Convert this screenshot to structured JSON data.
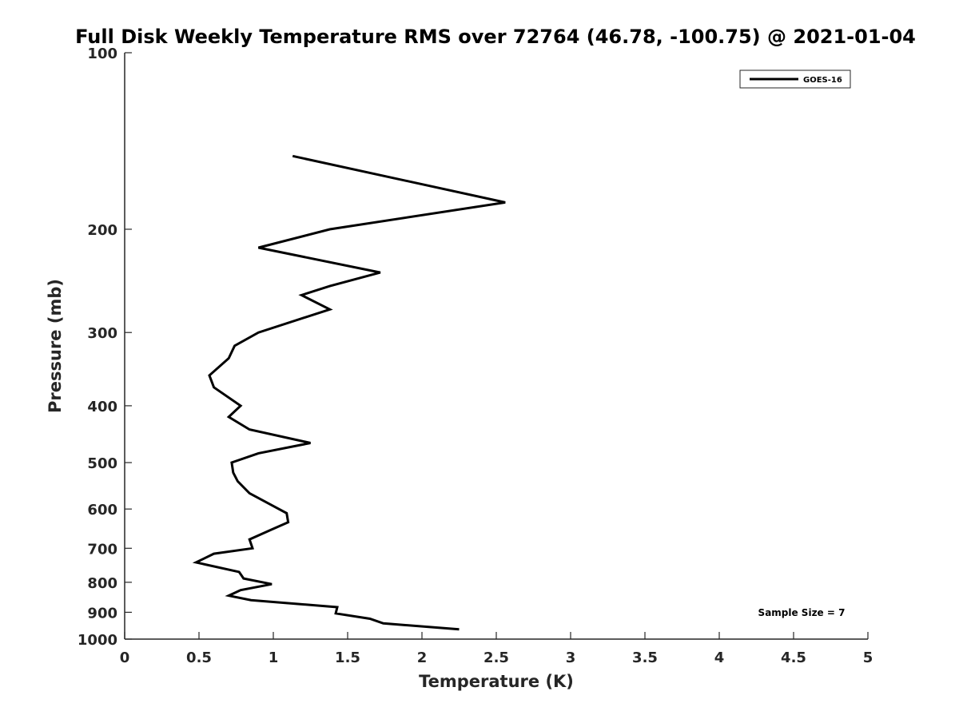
{
  "chart_data": {
    "type": "line",
    "title": "Full Disk Weekly Temperature RMS over 72764 (46.78, -100.75) @ 2021-01-04",
    "xlabel": "Temperature (K)",
    "ylabel": "Pressure (mb)",
    "xlim": [
      0,
      5
    ],
    "ylim": [
      100,
      1000
    ],
    "y_scale": "log",
    "y_reversed": true,
    "grid": false,
    "x_ticks": [
      0,
      0.5,
      1,
      1.5,
      2,
      2.5,
      3,
      3.5,
      4,
      4.5,
      5
    ],
    "x_tick_labels": [
      "0",
      "0.5",
      "1",
      "1.5",
      "2",
      "2.5",
      "3",
      "3.5",
      "4",
      "4.5",
      "5"
    ],
    "y_ticks": [
      100,
      200,
      300,
      400,
      500,
      600,
      700,
      800,
      900,
      1000
    ],
    "y_tick_labels": [
      "100",
      "200",
      "300",
      "400",
      "500",
      "600",
      "700",
      "800",
      "900",
      "1000"
    ],
    "legend_position": "top-right",
    "annotation": "Sample Size = 7",
    "series": [
      {
        "name": "GOES-16",
        "color": "#000000",
        "points": [
          {
            "x": 1.13,
            "p": 150
          },
          {
            "x": 2.56,
            "p": 180
          },
          {
            "x": 1.38,
            "p": 200
          },
          {
            "x": 0.9,
            "p": 215
          },
          {
            "x": 1.72,
            "p": 237
          },
          {
            "x": 1.38,
            "p": 250
          },
          {
            "x": 1.19,
            "p": 259
          },
          {
            "x": 1.38,
            "p": 274
          },
          {
            "x": 0.9,
            "p": 300
          },
          {
            "x": 0.74,
            "p": 316
          },
          {
            "x": 0.7,
            "p": 332
          },
          {
            "x": 0.57,
            "p": 355
          },
          {
            "x": 0.6,
            "p": 372
          },
          {
            "x": 0.78,
            "p": 400
          },
          {
            "x": 0.7,
            "p": 418
          },
          {
            "x": 0.84,
            "p": 439
          },
          {
            "x": 1.25,
            "p": 463
          },
          {
            "x": 0.9,
            "p": 482
          },
          {
            "x": 0.72,
            "p": 500
          },
          {
            "x": 0.73,
            "p": 520
          },
          {
            "x": 0.76,
            "p": 538
          },
          {
            "x": 0.84,
            "p": 564
          },
          {
            "x": 1.09,
            "p": 610
          },
          {
            "x": 1.1,
            "p": 632
          },
          {
            "x": 0.99,
            "p": 650
          },
          {
            "x": 0.84,
            "p": 676
          },
          {
            "x": 0.86,
            "p": 700
          },
          {
            "x": 0.6,
            "p": 715
          },
          {
            "x": 0.48,
            "p": 740
          },
          {
            "x": 0.77,
            "p": 768
          },
          {
            "x": 0.8,
            "p": 788
          },
          {
            "x": 0.99,
            "p": 806
          },
          {
            "x": 0.78,
            "p": 825
          },
          {
            "x": 0.7,
            "p": 843
          },
          {
            "x": 0.85,
            "p": 858
          },
          {
            "x": 1.43,
            "p": 882
          },
          {
            "x": 1.42,
            "p": 904
          },
          {
            "x": 1.65,
            "p": 923
          },
          {
            "x": 1.74,
            "p": 940
          },
          {
            "x": 2.25,
            "p": 962
          }
        ]
      }
    ]
  }
}
